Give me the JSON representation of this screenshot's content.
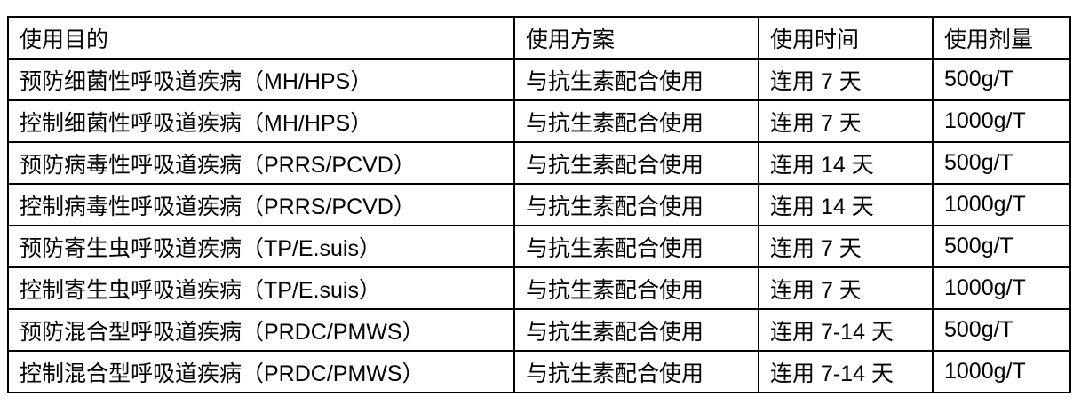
{
  "table": {
    "headers": [
      "使用目的",
      "使用方案",
      "使用时间",
      "使用剂量"
    ],
    "rows": [
      [
        "预防细菌性呼吸道疾病（MH/HPS）",
        "与抗生素配合使用",
        "连用 7 天",
        "500g/T"
      ],
      [
        "控制细菌性呼吸道疾病（MH/HPS）",
        "与抗生素配合使用",
        "连用 7 天",
        "1000g/T"
      ],
      [
        "预防病毒性呼吸道疾病（PRRS/PCVD）",
        "与抗生素配合使用",
        "连用 14 天",
        "500g/T"
      ],
      [
        "控制病毒性呼吸道疾病（PRRS/PCVD）",
        "与抗生素配合使用",
        "连用 14 天",
        "1000g/T"
      ],
      [
        "预防寄生虫呼吸道疾病（TP/E.suis）",
        "与抗生素配合使用",
        "连用 7 天",
        "500g/T"
      ],
      [
        "控制寄生虫呼吸道疾病（TP/E.suis）",
        "与抗生素配合使用",
        "连用 7 天",
        "1000g/T"
      ],
      [
        "预防混合型呼吸道疾病（PRDC/PMWS）",
        "与抗生素配合使用",
        "连用 7-14 天",
        "500g/T"
      ],
      [
        "控制混合型呼吸道疾病（PRDC/PMWS）",
        "与抗生素配合使用",
        "连用 7-14 天",
        "1000g/T"
      ]
    ]
  }
}
